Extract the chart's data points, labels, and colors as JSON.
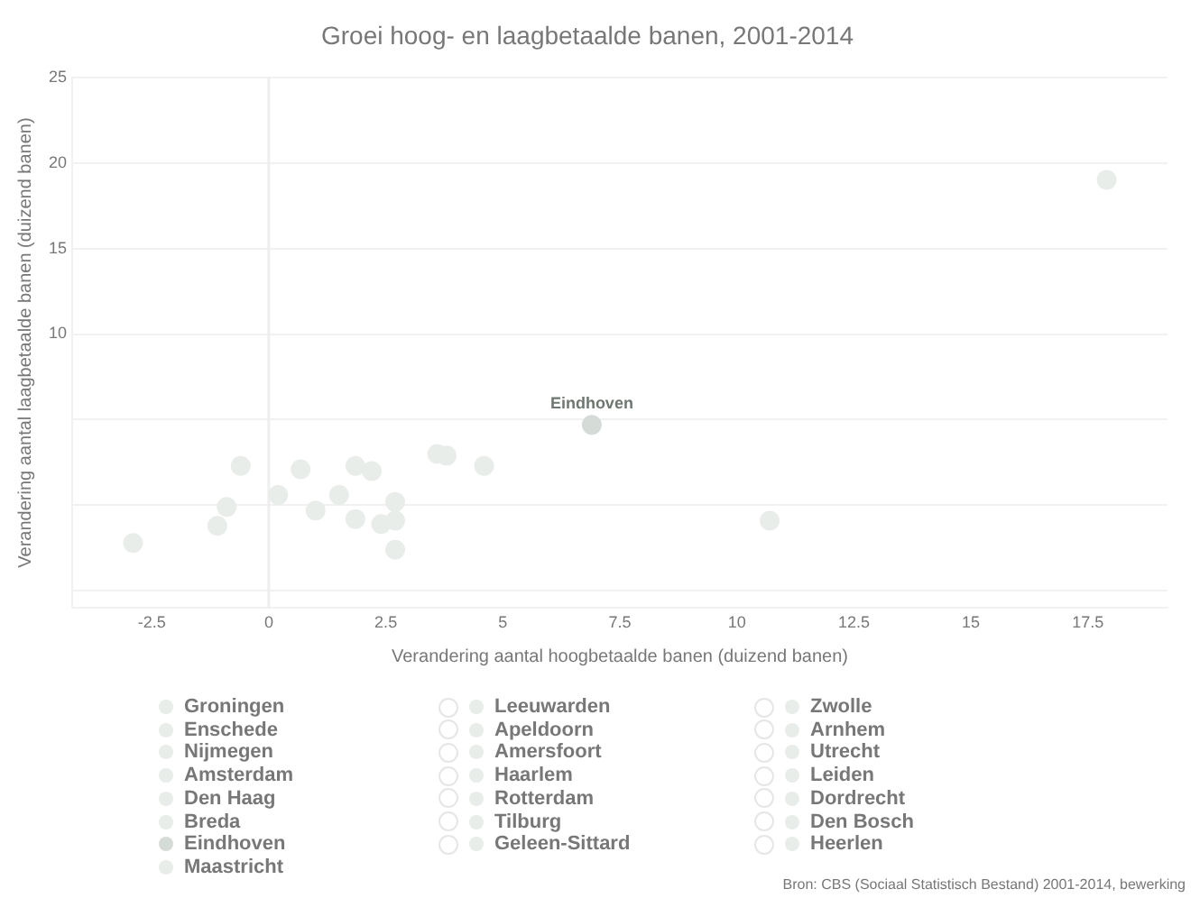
{
  "chart_data": {
    "type": "scatter",
    "title": "Groei hoog- en laagbetaalde banen, 2001-2014",
    "xlabel": "Verandering aantal hoogbetaalde banen (duizend banen)",
    "ylabel": "Verandering aantal laagbetaalde banen (duizend banen)",
    "xlim": [
      -4.2,
      19.2
    ],
    "xticks": [
      -2.5,
      0,
      2.5,
      5,
      7.5,
      10,
      12.5,
      15,
      17.5
    ],
    "ylim": [
      -6,
      25
    ],
    "yticks": [
      {
        "value": -5,
        "label": null
      },
      {
        "value": 0,
        "label": null
      },
      {
        "value": 5,
        "label": null
      },
      10,
      15,
      20,
      25
    ],
    "grid": "y",
    "legend": "bottom",
    "marker": "circle",
    "ref_lines": [
      {
        "axis": "x",
        "value": 0,
        "color": "#eeeeee"
      }
    ],
    "annotations": [
      {
        "text": "Eindhoven",
        "x": 6.9,
        "y": 4.7
      },
      "Bron: CBS (Sociaal Statistisch Bestand) 2001-2014, bewerking"
    ],
    "series": [
      {
        "name": "Groningen",
        "color": "#e9edea",
        "x": [
          3.6
        ],
        "values": [
          3.0
        ]
      },
      {
        "name": "Enschede",
        "color": "#e9edea",
        "x": [
          2.7
        ],
        "values": [
          -0.9
        ]
      },
      {
        "name": "Nijmegen",
        "color": "#e9edea",
        "x": [
          2.2
        ],
        "values": [
          2.0
        ]
      },
      {
        "name": "Amsterdam",
        "color": "#e9edea",
        "x": [
          17.9
        ],
        "values": [
          19.0
        ]
      },
      {
        "name": "Den Haag",
        "color": "#e9edea",
        "x": [
          3.8
        ],
        "values": [
          2.9
        ]
      },
      {
        "name": "Breda",
        "color": "#e9edea",
        "x": [
          1.0
        ],
        "values": [
          -0.3
        ]
      },
      {
        "name": "Eindhoven",
        "color": "#d5dcd8",
        "x": [
          6.9
        ],
        "values": [
          4.7
        ]
      },
      {
        "name": "Maastricht",
        "color": "#e9edea",
        "x": [
          2.7
        ],
        "values": [
          -2.6
        ]
      },
      {
        "name": "Leeuwarden",
        "color": "#e9edea",
        "x": [
          -0.9
        ],
        "values": [
          -0.1
        ]
      },
      {
        "name": "Apeldoorn",
        "color": "#e9edea",
        "x": [
          2.4
        ],
        "values": [
          -1.1
        ]
      },
      {
        "name": "Amersfoort",
        "color": "#e9edea",
        "x": [
          1.5
        ],
        "values": [
          0.6
        ]
      },
      {
        "name": "Haarlem",
        "color": "#e9edea",
        "x": [
          -0.6
        ],
        "values": [
          2.3
        ]
      },
      {
        "name": "Rotterdam",
        "color": "#e9edea",
        "x": [
          4.6
        ],
        "values": [
          2.3
        ]
      },
      {
        "name": "Tilburg",
        "color": "#e9edea",
        "x": [
          1.85
        ],
        "values": [
          -0.8
        ]
      },
      {
        "name": "Geleen-Sittard",
        "color": "#e9edea",
        "x": [
          null
        ],
        "values": [
          null
        ]
      },
      {
        "name": "Zwolle",
        "color": "#e9edea",
        "x": [
          0.2
        ],
        "values": [
          0.6
        ]
      },
      {
        "name": "Arnhem",
        "color": "#e9edea",
        "x": [
          1.85
        ],
        "values": [
          2.3
        ]
      },
      {
        "name": "Utrecht",
        "color": "#e9edea",
        "x": [
          10.7
        ],
        "values": [
          -0.9
        ]
      },
      {
        "name": "Leiden",
        "color": "#e9edea",
        "x": [
          0.68
        ],
        "values": [
          2.1
        ]
      },
      {
        "name": "Dordrecht",
        "color": "#e9edea",
        "x": [
          -1.1
        ],
        "values": [
          -1.2
        ]
      },
      {
        "name": "Den Bosch",
        "color": "#e9edea",
        "x": [
          2.7
        ],
        "values": [
          0.2
        ]
      },
      {
        "name": "Heerlen",
        "color": "#e9edea",
        "x": [
          -2.9
        ],
        "values": [
          -2.2
        ]
      }
    ]
  }
}
